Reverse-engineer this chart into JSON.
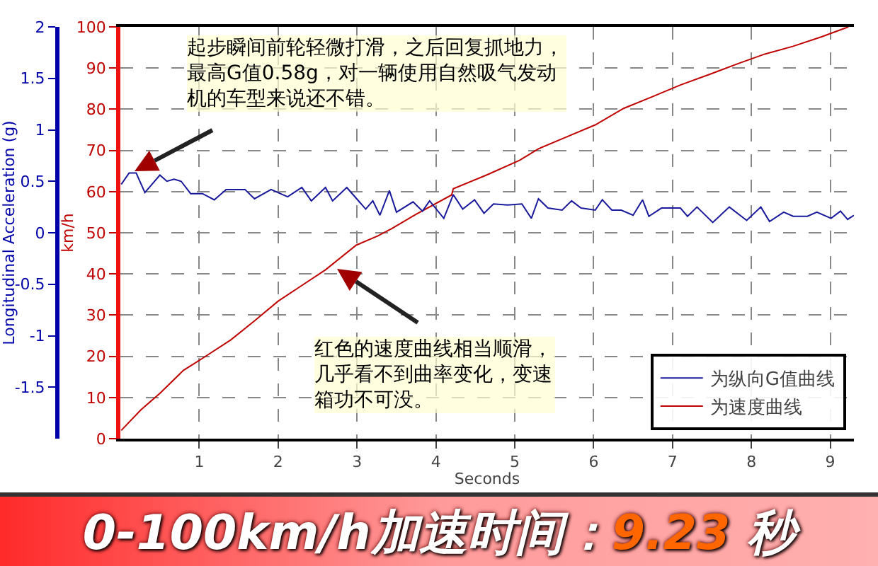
{
  "chart_data": {
    "type": "line",
    "xlabel": "Seconds",
    "ylabel": "km/h",
    "y2label": "Longitudinal Acceleration (g)",
    "xlim": [
      0,
      9.3
    ],
    "xticks": [
      1,
      2,
      3,
      4,
      5,
      6,
      7,
      8,
      9
    ],
    "ylim": [
      0,
      100
    ],
    "yticks": [
      0,
      10,
      20,
      30,
      40,
      50,
      60,
      70,
      80,
      90,
      100
    ],
    "y2lim": [
      -2,
      2
    ],
    "y2ticks": [
      -1.5,
      -1,
      -0.5,
      0,
      0.5,
      1,
      1.5,
      2
    ],
    "grid": true,
    "legend": "bottom right",
    "line_style": "solid",
    "series": [
      {
        "name": "为纵向G值曲线",
        "color": "#1a1a9c",
        "axis": "y2",
        "x": [
          0.01,
          0.11,
          0.2,
          0.31,
          0.5,
          0.59,
          0.68,
          0.77,
          0.89,
          1.04,
          1.19,
          1.34,
          1.58,
          1.7,
          1.91,
          2.12,
          2.3,
          2.42,
          2.6,
          2.69,
          2.87,
          3.11,
          3.2,
          3.29,
          3.41,
          3.5,
          3.71,
          3.83,
          3.92,
          4.1,
          4.22,
          4.34,
          4.49,
          4.61,
          4.73,
          4.91,
          5.09,
          5.21,
          5.3,
          5.42,
          5.6,
          5.72,
          5.84,
          6.02,
          6.11,
          6.23,
          6.35,
          6.5,
          6.62,
          6.7,
          6.86,
          7.1,
          7.19,
          7.31,
          7.51,
          7.72,
          7.94,
          8.12,
          8.23,
          8.41,
          8.53,
          8.71,
          8.83,
          9.01,
          9.13,
          9.22,
          9.3
        ],
        "values": [
          0.47,
          0.58,
          0.58,
          0.39,
          0.56,
          0.5,
          0.52,
          0.5,
          0.38,
          0.38,
          0.32,
          0.42,
          0.42,
          0.33,
          0.42,
          0.35,
          0.44,
          0.31,
          0.44,
          0.31,
          0.44,
          0.23,
          0.31,
          0.17,
          0.41,
          0.2,
          0.3,
          0.21,
          0.31,
          0.14,
          0.37,
          0.23,
          0.32,
          0.19,
          0.28,
          0.27,
          0.28,
          0.14,
          0.33,
          0.24,
          0.22,
          0.31,
          0.24,
          0.22,
          0.32,
          0.22,
          0.22,
          0.17,
          0.32,
          0.16,
          0.24,
          0.24,
          0.16,
          0.25,
          0.1,
          0.25,
          0.12,
          0.25,
          0.11,
          0.2,
          0.16,
          0.16,
          0.2,
          0.14,
          0.21,
          0.13,
          0.17
        ]
      },
      {
        "name": "为速度曲线",
        "color": "#c00000",
        "x": [
          0.01,
          0.26,
          0.5,
          0.8,
          1.04,
          1.4,
          1.7,
          2.0,
          2.3,
          2.6,
          2.99,
          3.26,
          3.44,
          3.74,
          4.2,
          4.22,
          4.64,
          5.06,
          5.3,
          5.66,
          6.02,
          6.38,
          6.74,
          7.1,
          7.46,
          7.82,
          8.17,
          8.53,
          8.89,
          9.23
        ],
        "values": [
          2,
          7,
          11,
          16.6,
          19.5,
          24,
          28.6,
          33.4,
          37.2,
          41,
          47,
          49.2,
          51,
          54.4,
          59.2,
          60.7,
          64,
          67.6,
          70.4,
          73.3,
          76.2,
          80.2,
          83,
          85.9,
          88.4,
          91,
          93.4,
          95.3,
          97.6,
          100
        ]
      }
    ],
    "annotations": [
      "起步瞬间前轮轻微打滑，之后回复抓地力，最高G值0.58g，对一辆使用自然吸气发动机的车型来说还不错。",
      "红色的速度曲线相当顺滑，几乎看不到曲率变化，变速箱功不可没。",
      "0-100km/h加速时间：9.23 秒"
    ]
  }
}
